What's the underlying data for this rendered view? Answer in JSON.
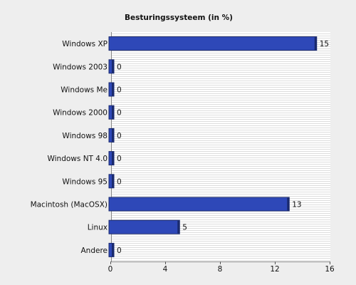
{
  "chart_data": {
    "type": "bar",
    "orientation": "horizontal",
    "title": "Besturingssysteem (in %)",
    "categories": [
      "Windows XP",
      "Windows 2003",
      "Windows Me",
      "Windows 2000",
      "Windows 98",
      "Windows NT 4.0",
      "Windows 95",
      "Macintosh (MacOSX)",
      "Linux",
      "Andere"
    ],
    "values": [
      15,
      0,
      0,
      0,
      0,
      0,
      0,
      13,
      5,
      0
    ],
    "xlim": [
      0,
      16
    ],
    "xticks": [
      0,
      4,
      8,
      12,
      16
    ],
    "grid": true,
    "bar_color": "#2e48b8",
    "bar_edge_color": "#1a2a6e",
    "background_color": "#eeeeee",
    "plot_background_color": "#ffffff",
    "grid_line_color": "#dddddd"
  }
}
